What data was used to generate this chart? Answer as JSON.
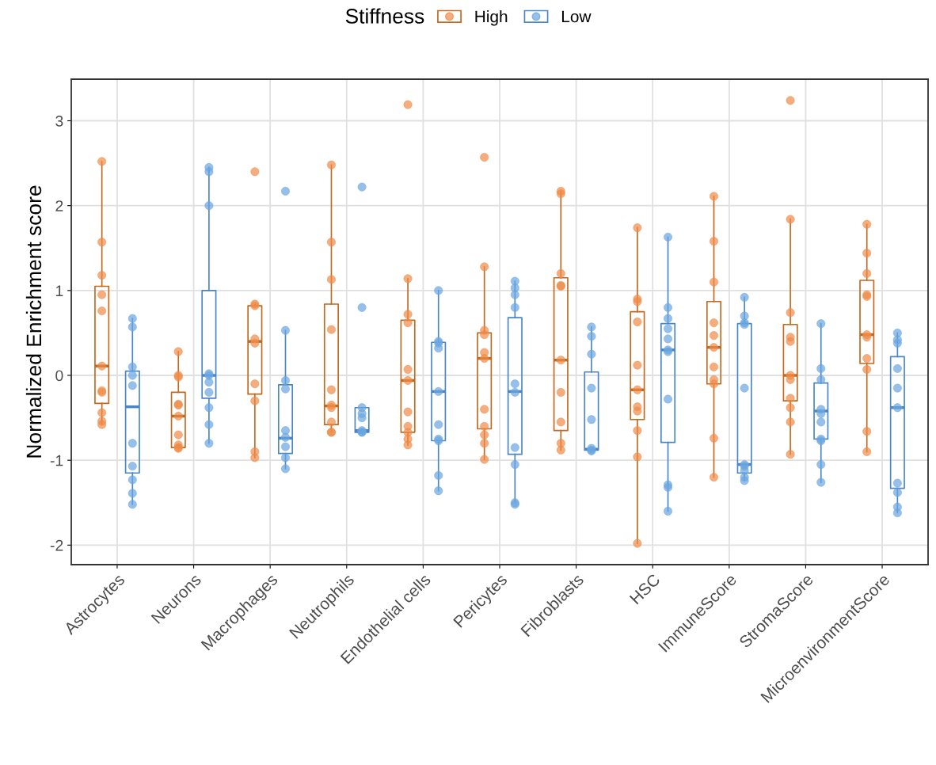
{
  "chart_data": {
    "type": "box",
    "ylabel": "Normalized Enrichment score",
    "legend_title": "Stiffness",
    "legend": "top",
    "grid": true,
    "marker": "circle",
    "categories": [
      "Astrocytes",
      "Neurons",
      "Macrophages",
      "Neutrophils",
      "Endothelial cells",
      "Pericytes",
      "Fibroblasts",
      "HSC",
      "ImmuneScore",
      "StromaScore",
      "MicroenvironmentScore"
    ],
    "ylim": [
      -2.23,
      3.49
    ],
    "yticks": [
      -2,
      -1,
      0,
      1,
      2,
      3
    ],
    "series": [
      {
        "name": "High",
        "color": "#c1691f",
        "boxes": [
          {
            "low": -0.58,
            "q1": -0.33,
            "median": 0.11,
            "q3": 1.05,
            "high": 2.52
          },
          {
            "low": -0.86,
            "q1": -0.85,
            "median": -0.48,
            "q3": -0.2,
            "high": 0.28
          },
          {
            "low": -0.97,
            "q1": -0.22,
            "median": 0.4,
            "q3": 0.82,
            "high": 0.84
          },
          {
            "low": -0.67,
            "q1": -0.58,
            "median": -0.36,
            "q3": 0.84,
            "high": 2.48
          },
          {
            "low": -0.82,
            "q1": -0.67,
            "median": -0.06,
            "q3": 0.65,
            "high": 1.14
          },
          {
            "low": -0.99,
            "q1": -0.63,
            "median": 0.2,
            "q3": 0.5,
            "high": 1.28
          },
          {
            "low": -0.88,
            "q1": -0.65,
            "median": 0.18,
            "q3": 1.15,
            "high": 2.17
          },
          {
            "low": -1.98,
            "q1": -0.52,
            "median": -0.17,
            "q3": 0.75,
            "high": 1.74
          },
          {
            "low": -1.2,
            "q1": -0.1,
            "median": 0.33,
            "q3": 0.87,
            "high": 2.11
          },
          {
            "low": -0.93,
            "q1": -0.3,
            "median": 0.0,
            "q3": 0.6,
            "high": 1.84
          },
          {
            "low": -0.9,
            "q1": 0.14,
            "median": 0.48,
            "q3": 1.12,
            "high": 1.78
          }
        ]
      },
      {
        "name": "Low",
        "color": "#4a86c5",
        "boxes": [
          {
            "low": -1.52,
            "q1": -1.15,
            "median": -0.37,
            "q3": 0.05,
            "high": 0.67
          },
          {
            "low": -0.8,
            "q1": -0.27,
            "median": 0.0,
            "q3": 1.0,
            "high": 2.45
          },
          {
            "low": -1.1,
            "q1": -0.92,
            "median": -0.74,
            "q3": -0.11,
            "high": 0.53
          },
          {
            "low": -0.67,
            "q1": -0.67,
            "median": -0.65,
            "q3": -0.38,
            "high": -0.38
          },
          {
            "low": -1.36,
            "q1": -0.77,
            "median": -0.19,
            "q3": 0.39,
            "high": 1.0
          },
          {
            "low": -1.5,
            "q1": -0.93,
            "median": -0.19,
            "q3": 0.68,
            "high": 1.11
          },
          {
            "low": -0.89,
            "q1": -0.88,
            "median": -0.87,
            "q3": 0.04,
            "high": 0.57
          },
          {
            "low": -1.6,
            "q1": -0.79,
            "median": 0.3,
            "q3": 0.61,
            "high": 1.63
          },
          {
            "low": -1.24,
            "q1": -1.15,
            "median": -1.05,
            "q3": 0.61,
            "high": 0.92
          },
          {
            "low": -1.26,
            "q1": -0.75,
            "median": -0.42,
            "q3": -0.09,
            "high": 0.61
          },
          {
            "low": -1.62,
            "q1": -1.33,
            "median": -0.38,
            "q3": 0.22,
            "high": 0.5
          }
        ]
      },
      {
        "color": "#ef8a47",
        "type": "scatter",
        "x": [
          "Astrocytes",
          "Astrocytes",
          "Astrocytes",
          "Astrocytes",
          "Astrocytes",
          "Astrocytes",
          "Astrocytes",
          "Astrocytes",
          "Astrocytes",
          "Astrocytes",
          "Astrocytes",
          "Neurons",
          "Neurons",
          "Neurons",
          "Neurons",
          "Neurons",
          "Neurons",
          "Neurons",
          "Neurons",
          "Neurons",
          "Neurons",
          "Macrophages",
          "Macrophages",
          "Macrophages",
          "Macrophages",
          "Macrophages",
          "Macrophages",
          "Macrophages",
          "Macrophages",
          "Macrophages",
          "Neutrophils",
          "Neutrophils",
          "Neutrophils",
          "Neutrophils",
          "Neutrophils",
          "Neutrophils",
          "Neutrophils",
          "Neutrophils",
          "Neutrophils",
          "Neutrophils",
          "Endothelial cells",
          "Endothelial cells",
          "Endothelial cells",
          "Endothelial cells",
          "Endothelial cells",
          "Endothelial cells",
          "Endothelial cells",
          "Endothelial cells",
          "Endothelial cells",
          "Endothelial cells",
          "Endothelial cells",
          "Pericytes",
          "Pericytes",
          "Pericytes",
          "Pericytes",
          "Pericytes",
          "Pericytes",
          "Pericytes",
          "Pericytes",
          "Pericytes",
          "Pericytes",
          "Pericytes",
          "Fibroblasts",
          "Fibroblasts",
          "Fibroblasts",
          "Fibroblasts",
          "Fibroblasts",
          "Fibroblasts",
          "Fibroblasts",
          "Fibroblasts",
          "Fibroblasts",
          "Fibroblasts",
          "HSC",
          "HSC",
          "HSC",
          "HSC",
          "HSC",
          "HSC",
          "HSC",
          "HSC",
          "HSC",
          "HSC",
          "HSC",
          "ImmuneScore",
          "ImmuneScore",
          "ImmuneScore",
          "ImmuneScore",
          "ImmuneScore",
          "ImmuneScore",
          "ImmuneScore",
          "ImmuneScore",
          "ImmuneScore",
          "ImmuneScore",
          "ImmuneScore",
          "StromaScore",
          "StromaScore",
          "StromaScore",
          "StromaScore",
          "StromaScore",
          "StromaScore",
          "StromaScore",
          "StromaScore",
          "StromaScore",
          "StromaScore",
          "StromaScore",
          "MicroenvironmentScore",
          "MicroenvironmentScore",
          "MicroenvironmentScore",
          "MicroenvironmentScore",
          "MicroenvironmentScore",
          "MicroenvironmentScore",
          "MicroenvironmentScore",
          "MicroenvironmentScore",
          "MicroenvironmentScore",
          "MicroenvironmentScore",
          "MicroenvironmentScore"
        ],
        "values": [
          2.52,
          1.57,
          1.18,
          0.95,
          0.76,
          0.11,
          -0.18,
          -0.2,
          -0.44,
          -0.54,
          -0.58,
          0.28,
          0.0,
          -0.02,
          -0.34,
          -0.35,
          -0.48,
          -0.7,
          -0.82,
          -0.85,
          -0.86,
          2.4,
          0.84,
          0.82,
          0.43,
          0.38,
          -0.1,
          -0.3,
          -0.9,
          -0.97,
          2.48,
          1.57,
          1.13,
          0.54,
          -0.17,
          -0.35,
          -0.38,
          -0.55,
          -0.67,
          -0.67,
          3.19,
          1.14,
          0.72,
          0.62,
          0.07,
          -0.06,
          -0.43,
          -0.6,
          -0.67,
          -0.75,
          -0.82,
          2.57,
          1.28,
          0.53,
          0.48,
          0.27,
          0.2,
          -0.4,
          -0.6,
          -0.7,
          -0.8,
          -0.99,
          2.17,
          2.14,
          1.2,
          1.06,
          1.05,
          0.18,
          -0.2,
          -0.55,
          -0.8,
          -0.88,
          1.74,
          0.9,
          0.87,
          0.63,
          0.12,
          -0.17,
          -0.37,
          -0.42,
          -0.65,
          -0.96,
          -1.98,
          2.11,
          1.58,
          1.1,
          0.62,
          0.47,
          0.33,
          0.1,
          -0.05,
          -0.1,
          -0.74,
          -1.2,
          3.24,
          1.84,
          0.74,
          0.45,
          0.4,
          0.0,
          -0.05,
          -0.27,
          -0.38,
          -0.55,
          -0.93,
          1.78,
          1.44,
          1.2,
          0.95,
          0.93,
          0.48,
          0.45,
          0.2,
          0.07,
          -0.66,
          -0.9
        ]
      },
      {
        "color": "#6aa5e0",
        "type": "scatter",
        "x": [
          "Astrocytes",
          "Astrocytes",
          "Astrocytes",
          "Astrocytes",
          "Astrocytes",
          "Astrocytes",
          "Astrocytes",
          "Astrocytes",
          "Astrocytes",
          "Astrocytes",
          "Neurons",
          "Neurons",
          "Neurons",
          "Neurons",
          "Neurons",
          "Neurons",
          "Neurons",
          "Neurons",
          "Neurons",
          "Neurons",
          "Macrophages",
          "Macrophages",
          "Macrophages",
          "Macrophages",
          "Macrophages",
          "Macrophages",
          "Macrophages",
          "Macrophages",
          "Macrophages",
          "Neutrophils",
          "Neutrophils",
          "Neutrophils",
          "Neutrophils",
          "Neutrophils",
          "Neutrophils",
          "Neutrophils",
          "Neutrophils",
          "Endothelial cells",
          "Endothelial cells",
          "Endothelial cells",
          "Endothelial cells",
          "Endothelial cells",
          "Endothelial cells",
          "Endothelial cells",
          "Endothelial cells",
          "Endothelial cells",
          "Endothelial cells",
          "Pericytes",
          "Pericytes",
          "Pericytes",
          "Pericytes",
          "Pericytes",
          "Pericytes",
          "Pericytes",
          "Pericytes",
          "Pericytes",
          "Pericytes",
          "Fibroblasts",
          "Fibroblasts",
          "Fibroblasts",
          "Fibroblasts",
          "Fibroblasts",
          "Fibroblasts",
          "Fibroblasts",
          "Fibroblasts",
          "HSC",
          "HSC",
          "HSC",
          "HSC",
          "HSC",
          "HSC",
          "HSC",
          "HSC",
          "HSC",
          "HSC",
          "HSC",
          "ImmuneScore",
          "ImmuneScore",
          "ImmuneScore",
          "ImmuneScore",
          "ImmuneScore",
          "ImmuneScore",
          "ImmuneScore",
          "ImmuneScore",
          "ImmuneScore",
          "ImmuneScore",
          "StromaScore",
          "StromaScore",
          "StromaScore",
          "StromaScore",
          "StromaScore",
          "StromaScore",
          "StromaScore",
          "StromaScore",
          "StromaScore",
          "StromaScore",
          "MicroenvironmentScore",
          "MicroenvironmentScore",
          "MicroenvironmentScore",
          "MicroenvironmentScore",
          "MicroenvironmentScore",
          "MicroenvironmentScore",
          "MicroenvironmentScore",
          "MicroenvironmentScore",
          "MicroenvironmentScore",
          "MicroenvironmentScore"
        ],
        "values": [
          0.67,
          0.57,
          0.1,
          0.0,
          -0.12,
          -0.8,
          -1.07,
          -1.23,
          -1.39,
          -1.52,
          2.45,
          2.4,
          2.0,
          0.02,
          0.0,
          -0.08,
          -0.2,
          -0.38,
          -0.58,
          -0.8,
          2.17,
          0.53,
          -0.06,
          -0.16,
          -0.65,
          -0.73,
          -0.84,
          -0.97,
          -1.1,
          2.22,
          0.8,
          -0.38,
          -0.45,
          -0.5,
          -0.65,
          -0.67,
          -0.67,
          1.0,
          0.4,
          0.38,
          0.32,
          -0.19,
          -0.58,
          -0.75,
          -0.77,
          -1.18,
          -1.36,
          1.11,
          1.03,
          0.95,
          0.8,
          -0.1,
          -0.2,
          -0.85,
          -1.05,
          -1.5,
          -1.52,
          0.57,
          0.46,
          0.25,
          -0.15,
          -0.52,
          -0.86,
          -0.88,
          -0.89,
          1.63,
          0.8,
          0.67,
          0.55,
          0.43,
          0.3,
          0.28,
          -0.28,
          -1.29,
          -1.32,
          -1.6,
          0.92,
          0.7,
          0.62,
          0.6,
          -0.15,
          -1.05,
          -1.07,
          -1.12,
          -1.2,
          -1.24,
          0.61,
          0.08,
          -0.05,
          -0.4,
          -0.45,
          -0.55,
          -0.75,
          -0.77,
          -1.05,
          -1.26,
          0.5,
          0.42,
          0.38,
          0.08,
          -0.15,
          -0.38,
          -1.27,
          -1.38,
          -1.55,
          -1.62
        ]
      }
    ]
  }
}
